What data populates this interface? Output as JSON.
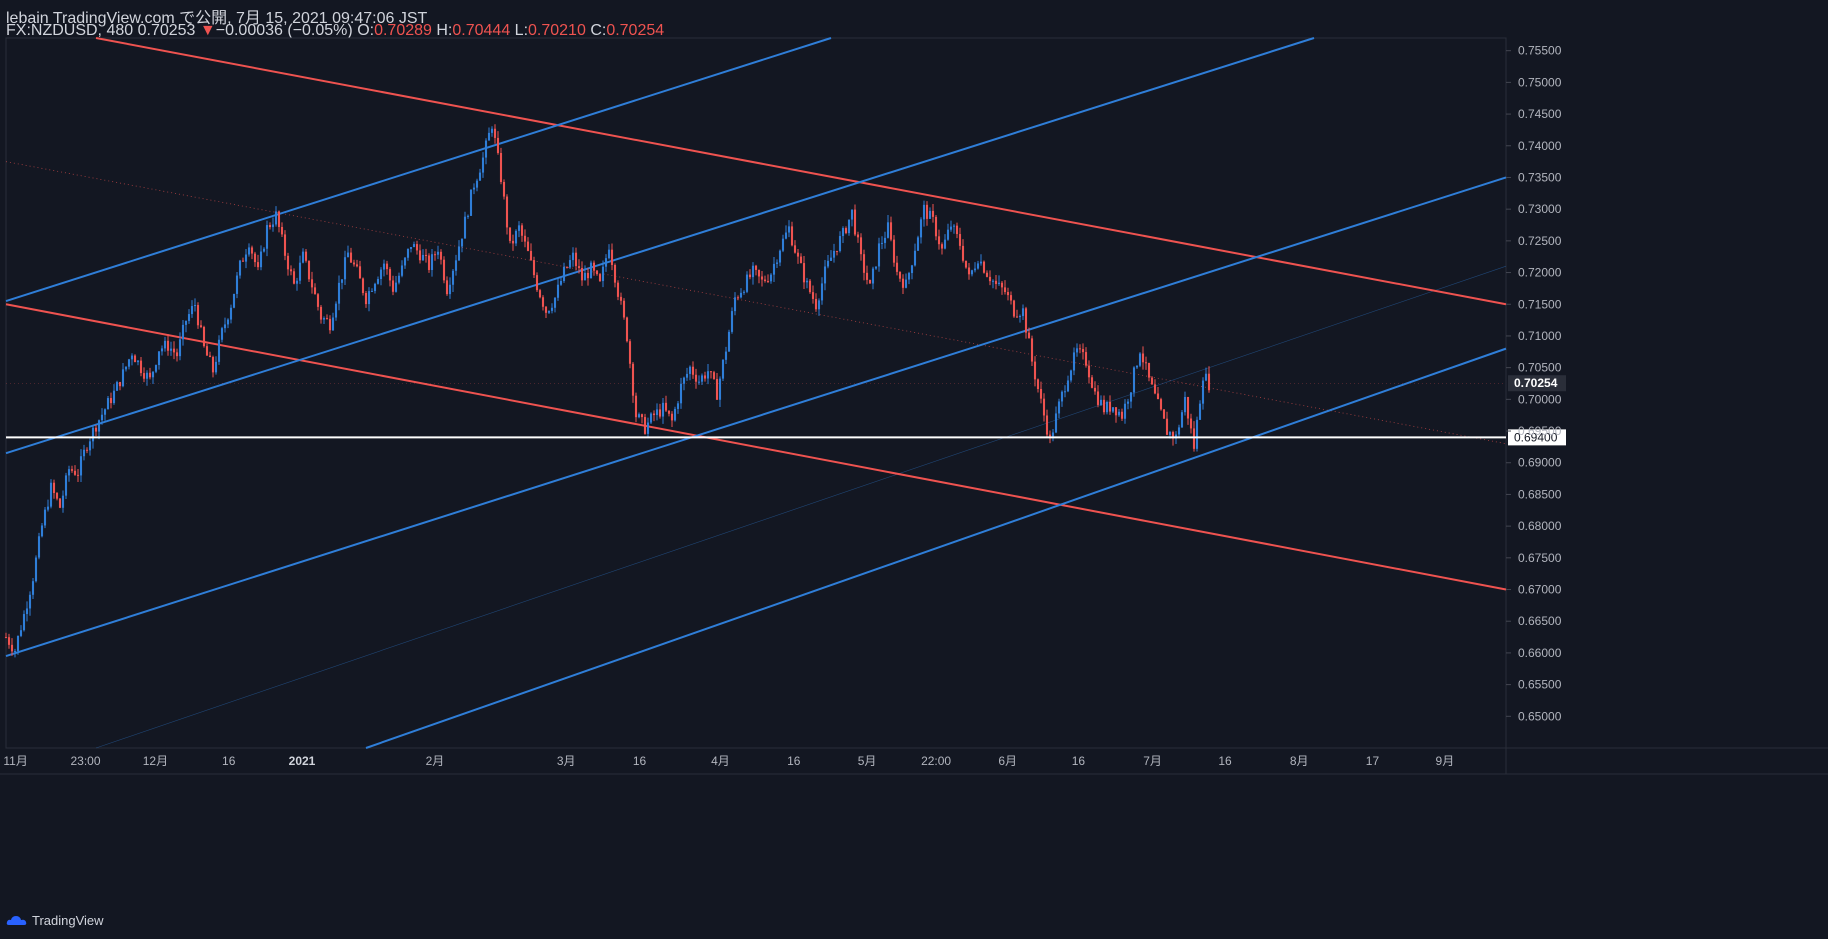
{
  "header": {
    "publisher": "lebain TradingView.com で公開, 7月 15, 2021 09:47:06 JST",
    "symbol": "FX:NZDUSD, 480",
    "last": "0.70253",
    "arrow": "▼",
    "change": "−0.00036 (−0.05%)",
    "o_label": "O:",
    "o": "0.70289",
    "h_label": "H:",
    "h": "0.70444",
    "l_label": "L:",
    "l": "0.70210",
    "c_label": "C:",
    "c": "0.70254"
  },
  "footer": {
    "brand": "TradingView"
  },
  "colors": {
    "bg": "#131722",
    "up": "#2f7ed8",
    "down": "#ef5350",
    "grid": "#1e2230",
    "white_line": "#ffffff"
  },
  "chart_data": {
    "type": "candlestick",
    "symbol": "FX:NZDUSD",
    "interval": "480",
    "ylim": [
      0.645,
      0.757
    ],
    "y_ticks": [
      "0.75500",
      "0.75000",
      "0.74500",
      "0.74000",
      "0.73500",
      "0.73000",
      "0.72500",
      "0.72000",
      "0.71500",
      "0.71000",
      "0.70500",
      "0.70000",
      "0.69500",
      "0.69000",
      "0.68500",
      "0.68000",
      "0.67500",
      "0.67000",
      "0.66500",
      "0.66000",
      "0.65500",
      "0.65000"
    ],
    "x_ticks": [
      "11月",
      "23:00",
      "12月",
      "16",
      "2021",
      "2月",
      "3月",
      "16",
      "4月",
      "16",
      "5月",
      "22:00",
      "6月",
      "16",
      "7月",
      "16",
      "8月",
      "17",
      "9月"
    ],
    "price_labels": {
      "last": "0.70254",
      "horizontal": "0.69400"
    },
    "horizontal_line": 0.694,
    "close_path": [
      [
        0,
        0.6625
      ],
      [
        3,
        0.6605
      ],
      [
        6,
        0.666
      ],
      [
        9,
        0.672
      ],
      [
        12,
        0.68
      ],
      [
        15,
        0.686
      ],
      [
        18,
        0.683
      ],
      [
        21,
        0.689
      ],
      [
        24,
        0.6885
      ],
      [
        27,
        0.693
      ],
      [
        30,
        0.696
      ],
      [
        33,
        0.6985
      ],
      [
        36,
        0.701
      ],
      [
        39,
        0.704
      ],
      [
        42,
        0.7075
      ],
      [
        45,
        0.705
      ],
      [
        48,
        0.703
      ],
      [
        51,
        0.708
      ],
      [
        54,
        0.7085
      ],
      [
        57,
        0.707
      ],
      [
        60,
        0.7125
      ],
      [
        63,
        0.715
      ],
      [
        66,
        0.708
      ],
      [
        69,
        0.7045
      ],
      [
        72,
        0.7105
      ],
      [
        75,
        0.715
      ],
      [
        78,
        0.721
      ],
      [
        81,
        0.725
      ],
      [
        84,
        0.72
      ],
      [
        87,
        0.727
      ],
      [
        90,
        0.729
      ],
      [
        93,
        0.723
      ],
      [
        96,
        0.718
      ],
      [
        99,
        0.7225
      ],
      [
        102,
        0.718
      ],
      [
        105,
        0.713
      ],
      [
        108,
        0.712
      ],
      [
        111,
        0.718
      ],
      [
        114,
        0.723
      ],
      [
        117,
        0.72
      ],
      [
        120,
        0.716
      ],
      [
        123,
        0.719
      ],
      [
        126,
        0.7215
      ],
      [
        129,
        0.7175
      ],
      [
        132,
        0.7205
      ],
      [
        135,
        0.7245
      ],
      [
        138,
        0.723
      ],
      [
        141,
        0.721
      ],
      [
        144,
        0.724
      ],
      [
        147,
        0.7175
      ],
      [
        150,
        0.7225
      ],
      [
        153,
        0.728
      ],
      [
        156,
        0.734
      ],
      [
        159,
        0.738
      ],
      [
        162,
        0.7435
      ],
      [
        165,
        0.735
      ],
      [
        168,
        0.724
      ],
      [
        171,
        0.727
      ],
      [
        174,
        0.723
      ],
      [
        177,
        0.718
      ],
      [
        180,
        0.714
      ],
      [
        183,
        0.716
      ],
      [
        186,
        0.72
      ],
      [
        189,
        0.7225
      ],
      [
        192,
        0.719
      ],
      [
        195,
        0.7205
      ],
      [
        198,
        0.718
      ],
      [
        201,
        0.7245
      ],
      [
        204,
        0.717
      ],
      [
        207,
        0.71
      ],
      [
        210,
        0.6975
      ],
      [
        213,
        0.6955
      ],
      [
        216,
        0.6975
      ],
      [
        219,
        0.6985
      ],
      [
        222,
        0.6965
      ],
      [
        225,
        0.702
      ],
      [
        228,
        0.705
      ],
      [
        231,
        0.703
      ],
      [
        234,
        0.7045
      ],
      [
        237,
        0.701
      ],
      [
        240,
        0.708
      ],
      [
        243,
        0.716
      ],
      [
        246,
        0.718
      ],
      [
        249,
        0.72
      ],
      [
        252,
        0.7185
      ],
      [
        255,
        0.72
      ],
      [
        258,
        0.724
      ],
      [
        261,
        0.727
      ],
      [
        264,
        0.722
      ],
      [
        267,
        0.718
      ],
      [
        270,
        0.715
      ],
      [
        273,
        0.72
      ],
      [
        276,
        0.7235
      ],
      [
        279,
        0.726
      ],
      [
        282,
        0.7295
      ],
      [
        285,
        0.722
      ],
      [
        288,
        0.7175
      ],
      [
        291,
        0.724
      ],
      [
        294,
        0.727
      ],
      [
        297,
        0.72
      ],
      [
        300,
        0.718
      ],
      [
        303,
        0.724
      ],
      [
        306,
        0.73
      ],
      [
        309,
        0.728
      ],
      [
        312,
        0.7235
      ],
      [
        315,
        0.7275
      ],
      [
        318,
        0.7245
      ],
      [
        321,
        0.719
      ],
      [
        324,
        0.7225
      ],
      [
        327,
        0.72
      ],
      [
        330,
        0.718
      ],
      [
        333,
        0.717
      ],
      [
        336,
        0.714
      ],
      [
        339,
        0.714
      ],
      [
        342,
        0.706
      ],
      [
        345,
        0.6995
      ],
      [
        348,
        0.6935
      ],
      [
        351,
        0.699
      ],
      [
        354,
        0.704
      ],
      [
        357,
        0.7075
      ],
      [
        360,
        0.706
      ],
      [
        363,
        0.701
      ],
      [
        366,
        0.6985
      ],
      [
        369,
        0.699
      ],
      [
        372,
        0.6975
      ],
      [
        375,
        0.702
      ],
      [
        378,
        0.708
      ],
      [
        381,
        0.703
      ],
      [
        384,
        0.699
      ],
      [
        387,
        0.695
      ],
      [
        390,
        0.694
      ],
      [
        393,
        0.7
      ],
      [
        396,
        0.6925
      ],
      [
        399,
        0.704
      ],
      [
        401,
        0.7025
      ]
    ],
    "trendlines": [
      {
        "color": "#ef5350",
        "from": [
          30,
          0.757
        ],
        "to": [
          500,
          0.715
        ]
      },
      {
        "color": "#ef5350",
        "from": [
          0,
          0.715
        ],
        "to": [
          500,
          0.67
        ]
      },
      {
        "color": "#2f7ed8",
        "from": [
          0,
          0.7155
        ],
        "to": [
          275,
          0.757
        ]
      },
      {
        "color": "#2f7ed8",
        "from": [
          0,
          0.6915
        ],
        "to": [
          436,
          0.757
        ]
      },
      {
        "color": "#2f7ed8",
        "from": [
          0,
          0.6595
        ],
        "to": [
          500,
          0.735
        ]
      },
      {
        "color": "#2f7ed8",
        "from": [
          120,
          0.645
        ],
        "to": [
          500,
          0.708
        ]
      }
    ]
  }
}
